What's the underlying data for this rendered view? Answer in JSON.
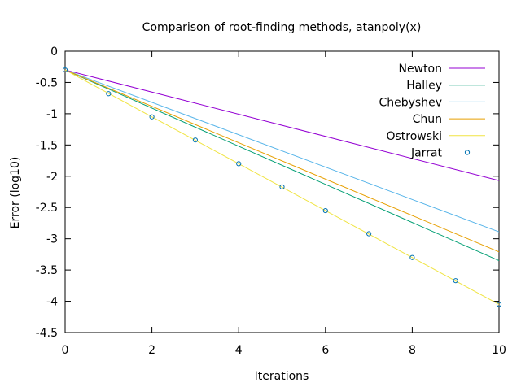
{
  "chart_data": {
    "type": "line",
    "title": "Comparison of root-finding methods, atanpoly(x)",
    "xlabel": "Iterations",
    "ylabel": "Error (log10)",
    "xlim": [
      0,
      10
    ],
    "ylim": [
      -4.5,
      0
    ],
    "x_ticks": [
      0,
      2,
      4,
      6,
      8,
      10
    ],
    "y_ticks": [
      0,
      -0.5,
      -1,
      -1.5,
      -2,
      -2.5,
      -3,
      -3.5,
      -4,
      -4.5
    ],
    "x_tick_labels": [
      "0",
      "2",
      "4",
      "6",
      "8",
      "10"
    ],
    "y_tick_labels": [
      "0",
      "-0.5",
      "-1",
      "-1.5",
      "-2",
      "-2.5",
      "-3",
      "-3.5",
      "-4",
      "-4.5"
    ],
    "grid": false,
    "legend_position": "top-right",
    "series": [
      {
        "name": "Newton",
        "style": "line",
        "color": "#9400d3",
        "x": [
          0,
          10
        ],
        "y": [
          -0.3,
          -2.07
        ]
      },
      {
        "name": "Halley",
        "style": "line",
        "color": "#009e73",
        "x": [
          0,
          10
        ],
        "y": [
          -0.3,
          -3.35
        ]
      },
      {
        "name": "Chebyshev",
        "style": "line",
        "color": "#56b4e9",
        "x": [
          0,
          10
        ],
        "y": [
          -0.3,
          -2.89
        ]
      },
      {
        "name": "Chun",
        "style": "line",
        "color": "#e69f00",
        "x": [
          0,
          10
        ],
        "y": [
          -0.3,
          -3.21
        ]
      },
      {
        "name": "Ostrowski",
        "style": "line",
        "color": "#f0e442",
        "x": [
          0,
          10
        ],
        "y": [
          -0.3,
          -4.05
        ]
      },
      {
        "name": "Jarrat",
        "style": "points",
        "color": "#0072b2",
        "x": [
          0,
          1,
          2,
          3,
          4,
          5,
          6,
          7,
          8,
          9,
          10
        ],
        "y": [
          -0.3,
          -0.68,
          -1.05,
          -1.42,
          -1.8,
          -2.17,
          -2.55,
          -2.92,
          -3.3,
          -3.67,
          -4.05
        ]
      }
    ]
  }
}
